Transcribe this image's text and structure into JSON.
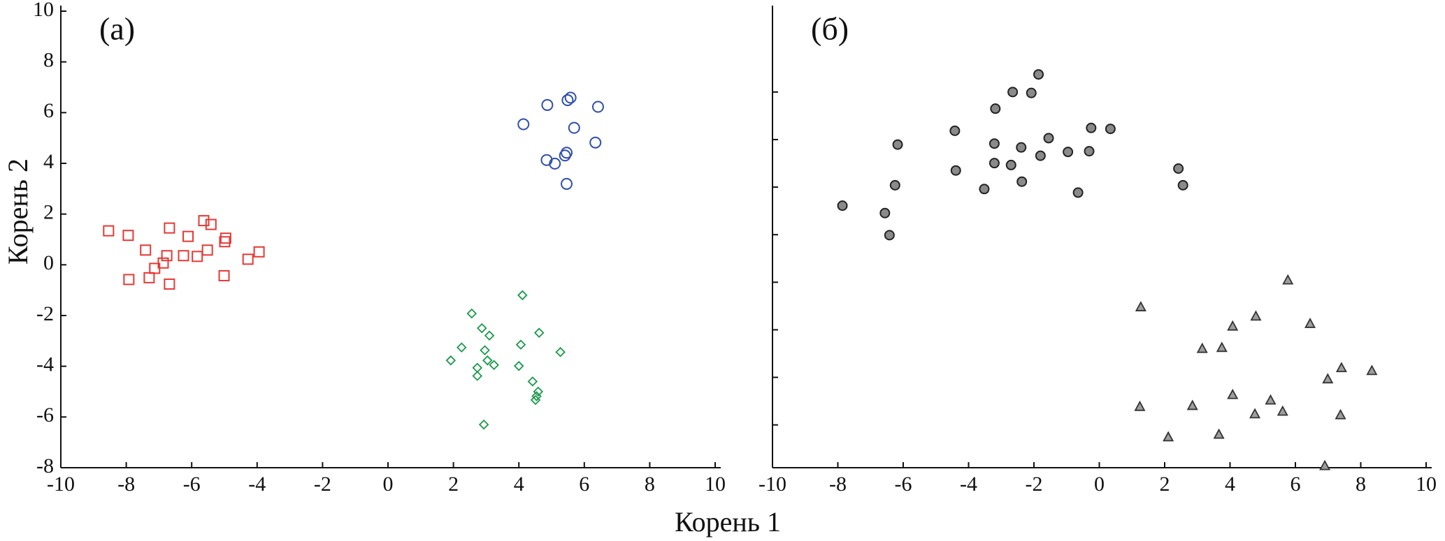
{
  "chart_data": [
    {
      "type": "scatter",
      "title": "(а)",
      "xlabel": "Корень 1",
      "ylabel": "Корень 2",
      "xlim": [
        -10,
        10
      ],
      "ylim": [
        -8,
        10
      ],
      "xticks": [
        -10,
        -8,
        -6,
        -4,
        -2,
        0,
        2,
        4,
        6,
        8,
        10
      ],
      "yticks": [
        -8,
        -6,
        -4,
        -2,
        0,
        2,
        4,
        6,
        8,
        10
      ],
      "ytick_labels": true,
      "series": [
        {
          "color": "#e53935",
          "marker": "square",
          "x": [
            -8.54,
            -7.94,
            -6.68,
            -5.63,
            -5.41,
            -6.11,
            -4.96,
            -4.99,
            -7.41,
            -5.52,
            -6.76,
            -6.25,
            -5.83,
            -3.94,
            -4.28,
            -6.87,
            -7.13,
            -7.92,
            -7.3,
            -5.01,
            -6.68
          ],
          "values": [
            1.34,
            1.16,
            1.45,
            1.74,
            1.59,
            1.12,
            1.05,
            0.91,
            0.58,
            0.58,
            0.36,
            0.36,
            0.33,
            0.51,
            0.22,
            0.07,
            -0.14,
            -0.58,
            -0.51,
            -0.43,
            -0.76
          ]
        },
        {
          "color": "#2f4faa",
          "marker": "circle",
          "x": [
            4.87,
            5.49,
            5.58,
            6.42,
            4.14,
            5.69,
            6.34,
            4.85,
            5.1,
            5.41,
            5.46,
            5.46
          ],
          "values": [
            6.3,
            6.49,
            6.59,
            6.23,
            5.54,
            5.4,
            4.82,
            4.13,
            3.99,
            4.31,
            4.42,
            3.19
          ]
        },
        {
          "color": "#1a9a4a",
          "marker": "diamond",
          "x": [
            4.11,
            2.56,
            2.87,
            4.62,
            3.1,
            4.06,
            2.25,
            2.96,
            5.27,
            1.92,
            3.04,
            4.0,
            2.73,
            3.24,
            2.73,
            4.42,
            4.59,
            4.54,
            4.51,
            2.93
          ],
          "values": [
            -1.2,
            -1.92,
            -2.5,
            -2.68,
            -2.79,
            -3.15,
            -3.26,
            -3.37,
            -3.44,
            -3.77,
            -3.77,
            -3.99,
            -4.06,
            -3.95,
            -4.38,
            -4.6,
            -5.0,
            -5.18,
            -5.33,
            -6.3
          ]
        }
      ]
    },
    {
      "type": "scatter",
      "title": "(б)",
      "xlim": [
        -10,
        10
      ],
      "ylim": [
        -7.8,
        11.4
      ],
      "xticks": [
        -10,
        -8,
        -6,
        -4,
        -2,
        0,
        2,
        4,
        6,
        8,
        10
      ],
      "yticks": [
        -6,
        -4,
        -2,
        0,
        2,
        4,
        6,
        8
      ],
      "ytick_labels": false,
      "series": [
        {
          "color": "#8a8a8a",
          "marker": "filled-circle",
          "x": [
            -7.86,
            -6.56,
            -6.42,
            -6.25,
            -6.17,
            -4.42,
            -4.39,
            -3.52,
            -3.18,
            -3.21,
            -3.21,
            -2.65,
            -2.7,
            -2.39,
            -2.37,
            -2.08,
            -1.86,
            -1.8,
            -1.55,
            -0.96,
            -0.65,
            -0.31,
            -0.25,
            0.34,
            2.42,
            2.56
          ],
          "values": [
            3.22,
            2.91,
            1.98,
            4.08,
            5.79,
            6.37,
            4.7,
            3.92,
            7.3,
            5.83,
            5.01,
            8.0,
            4.93,
            5.67,
            4.23,
            7.96,
            8.74,
            5.32,
            6.06,
            5.48,
            3.77,
            5.51,
            6.49,
            6.45,
            4.78,
            4.08
          ]
        },
        {
          "color": "#9e9e9e",
          "marker": "triangle",
          "x": [
            5.77,
            1.27,
            4.79,
            4.08,
            6.45,
            3.15,
            3.75,
            7.41,
            8.34,
            6.99,
            4.08,
            1.24,
            5.24,
            2.85,
            5.61,
            4.76,
            7.38,
            2.11,
            3.66,
            6.9
          ],
          "values": [
            0.08,
            -1.05,
            -1.44,
            -1.86,
            -1.75,
            -2.8,
            -2.76,
            -3.61,
            -3.73,
            -4.08,
            -4.74,
            -5.24,
            -4.97,
            -5.2,
            -5.44,
            -5.55,
            -5.59,
            -6.52,
            -6.41,
            -7.73
          ]
        }
      ]
    }
  ]
}
